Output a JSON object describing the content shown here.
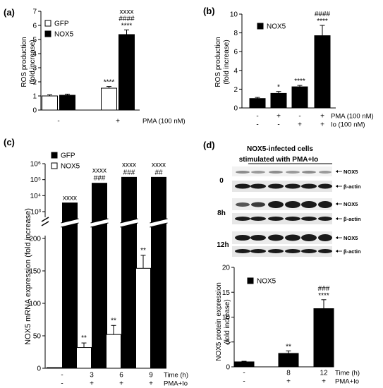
{
  "chart_data": [
    {
      "panel_label": "(a)",
      "type": "bar",
      "ylabel_lines": [
        "ROS production",
        "(fold increase)"
      ],
      "ylim": [
        0,
        7
      ],
      "yticks": [
        0,
        1,
        2,
        3,
        4,
        5,
        6,
        7
      ],
      "legend": [
        "GFP",
        "NOX5"
      ],
      "legend_position": "top-left",
      "groups": [
        {
          "x_label": "-",
          "bars": [
            {
              "series": "GFP",
              "value": 1.0,
              "err": 0.08,
              "fill": "#ffffff",
              "annot": []
            },
            {
              "series": "NOX5",
              "value": 1.05,
              "err": 0.08,
              "fill": "#000000",
              "annot": []
            }
          ]
        },
        {
          "x_label": "+",
          "bars": [
            {
              "series": "GFP",
              "value": 1.55,
              "err": 0.12,
              "fill": "#ffffff",
              "annot": [
                "****"
              ]
            },
            {
              "series": "NOX5",
              "value": 5.35,
              "err": 0.33,
              "fill": "#000000",
              "annot": [
                "****",
                "####",
                "xxxx"
              ]
            }
          ]
        }
      ],
      "row_labels": [
        "PMA (100 nM)"
      ]
    },
    {
      "panel_label": "(b)",
      "type": "bar",
      "ylabel_lines": [
        "ROS production",
        "(fold increase)"
      ],
      "ylim": [
        0,
        10
      ],
      "yticks": [
        0,
        2,
        4,
        6,
        8,
        10
      ],
      "legend": [
        "NOX5"
      ],
      "legend_position": "top-left",
      "groups": [
        {
          "x_label": [
            "-",
            "-"
          ],
          "bars": [
            {
              "series": "NOX5",
              "value": 1.0,
              "err": 0.12,
              "fill": "#000000",
              "annot": []
            }
          ]
        },
        {
          "x_label": [
            "+",
            "-"
          ],
          "bars": [
            {
              "series": "NOX5",
              "value": 1.55,
              "err": 0.2,
              "fill": "#000000",
              "annot": [
                "*"
              ]
            }
          ]
        },
        {
          "x_label": [
            "-",
            "+"
          ],
          "bars": [
            {
              "series": "NOX5",
              "value": 2.25,
              "err": 0.15,
              "fill": "#000000",
              "annot": [
                "****"
              ]
            }
          ]
        },
        {
          "x_label": [
            "+",
            "+"
          ],
          "bars": [
            {
              "series": "NOX5",
              "value": 7.7,
              "err": 1.1,
              "fill": "#000000",
              "annot": [
                "****",
                "####"
              ]
            }
          ]
        }
      ],
      "row_labels": [
        "PMA (100 nM)",
        "Io (100 nM)"
      ]
    },
    {
      "panel_label": "(c)",
      "type": "bar",
      "ylabel": "NOX5 mRNA expression (fold increase)",
      "broken_axis": true,
      "lower_ylim": [
        0,
        200
      ],
      "lower_yticks": [
        0,
        50,
        100,
        150,
        200
      ],
      "upper_yscale": "log",
      "upper_ylim_exponents": [
        3,
        6
      ],
      "upper_yticks": [
        "10³",
        "10⁴",
        "10⁵",
        "10⁶"
      ],
      "legend": [
        "GFP",
        "NOX5"
      ],
      "legend_position": "top-right",
      "groups": [
        {
          "x_label": [
            "-",
            "-"
          ],
          "bars": [
            {
              "series": "GFP",
              "value": 1,
              "err": 0,
              "fill": "#ffffff",
              "annot": []
            },
            {
              "series": "NOX5",
              "value": 3500,
              "err": 0,
              "fill": "#000000",
              "annot": [
                "xxxx"
              ]
            }
          ]
        },
        {
          "x_label": [
            "3",
            "+"
          ],
          "bars": [
            {
              "series": "GFP",
              "value": 32,
              "err": 7,
              "fill": "#ffffff",
              "annot": [
                "**"
              ]
            },
            {
              "series": "NOX5",
              "value": 60000,
              "err": 0,
              "fill": "#000000",
              "annot": [
                "###",
                "xxxx"
              ]
            }
          ]
        },
        {
          "x_label": [
            "6",
            "+"
          ],
          "bars": [
            {
              "series": "GFP",
              "value": 52,
              "err": 14,
              "fill": "#ffffff",
              "annot": [
                "**"
              ]
            },
            {
              "series": "NOX5",
              "value": 140000,
              "err": 0,
              "fill": "#000000",
              "annot": [
                "###",
                "xxxx"
              ]
            }
          ]
        },
        {
          "x_label": [
            "9",
            "+"
          ],
          "bars": [
            {
              "series": "GFP",
              "value": 154,
              "err": 20,
              "fill": "#ffffff",
              "annot": [
                "**"
              ]
            },
            {
              "series": "NOX5",
              "value": 140000,
              "err": 0,
              "fill": "#000000",
              "annot": [
                "##",
                "xxxx"
              ]
            }
          ]
        }
      ],
      "row_labels": [
        "Time (h)",
        "PMA+Io"
      ]
    },
    {
      "panel_label": "(d)",
      "type": "bar",
      "ylabel_lines": [
        "NOX5 protein expression",
        "(fold increase)"
      ],
      "ylim": [
        0,
        20
      ],
      "yticks": [
        0,
        5,
        10,
        15,
        20
      ],
      "legend": [
        "NOX5"
      ],
      "legend_position": "top-left",
      "groups": [
        {
          "x_label": [
            "-",
            "-"
          ],
          "bars": [
            {
              "series": "NOX5",
              "value": 1.0,
              "err": 0.12,
              "fill": "#000000",
              "annot": []
            }
          ]
        },
        {
          "x_label": [
            "8",
            "+"
          ],
          "bars": [
            {
              "series": "NOX5",
              "value": 2.7,
              "err": 0.5,
              "fill": "#000000",
              "annot": [
                "**"
              ]
            }
          ]
        },
        {
          "x_label": [
            "12",
            "+"
          ],
          "bars": [
            {
              "series": "NOX5",
              "value": 11.7,
              "err": 1.8,
              "fill": "#000000",
              "annot": [
                "****",
                "###"
              ]
            }
          ]
        }
      ],
      "row_labels": [
        "Time (h)",
        "PMA+Io"
      ]
    }
  ],
  "blot": {
    "title_line1": "NOX5-infected cells",
    "title_line2": "stimulated with  PMA+Io",
    "rows": [
      {
        "time": "0",
        "band1": "NOX5",
        "band2": "β-actin"
      },
      {
        "time": "8h",
        "band1": "NOX5",
        "band2": "β-actin"
      },
      {
        "time": "12h",
        "band1": "NOX5",
        "band2": "β-actin"
      }
    ]
  }
}
